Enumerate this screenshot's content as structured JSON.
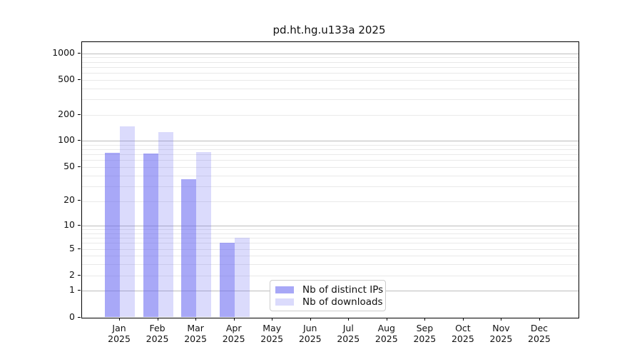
{
  "page": {
    "background_color": "#ffffff"
  },
  "chart_data": {
    "type": "bar",
    "title": "pd.ht.hg.u133a 2025",
    "year_label": "2025",
    "categories": [
      "Jan",
      "Feb",
      "Mar",
      "Apr",
      "May",
      "Jun",
      "Jul",
      "Aug",
      "Sep",
      "Oct",
      "Nov",
      "Dec"
    ],
    "series": [
      {
        "name": "Nb of distinct IPs",
        "color": "rgba(100,100,240,0.56)",
        "color_hex_approx": "#a8a8f6",
        "values": [
          73,
          71,
          36,
          6,
          0,
          0,
          0,
          0,
          0,
          0,
          0,
          0
        ]
      },
      {
        "name": "Nb of downloads",
        "color": "rgba(100,100,240,0.23)",
        "color_hex_approx": "#dbdbfc",
        "values": [
          148,
          127,
          74,
          7,
          0,
          0,
          0,
          0,
          0,
          0,
          0,
          0
        ]
      }
    ],
    "xlabel": "",
    "ylabel": "",
    "yscale": "log1p",
    "ylim": [
      0,
      1340
    ],
    "yticks": [
      0,
      1,
      2,
      5,
      10,
      20,
      50,
      100,
      200,
      500,
      1000
    ],
    "grid": "horizontal major and minor gridlines on",
    "grid_major_color": "#bdbdbd",
    "grid_minor_color": "#e9e9e9",
    "axis_color": "#000000",
    "legend_position": "inside bottom center"
  }
}
